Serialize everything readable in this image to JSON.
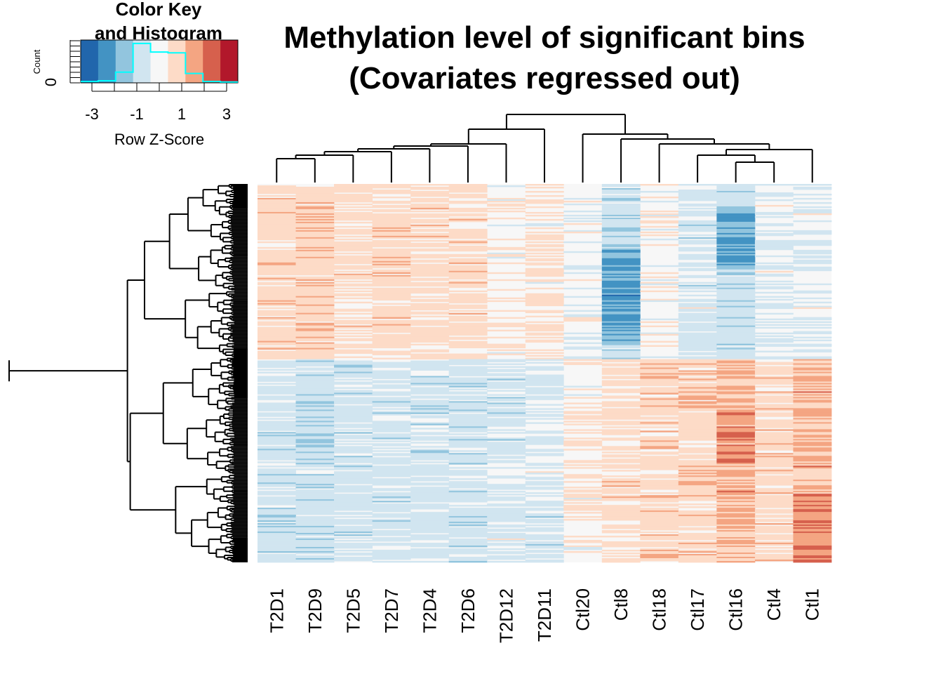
{
  "chart_data": {
    "type": "heatmap",
    "title": [
      "Methylation level of significant bins",
      "(Covariates regressed out)"
    ],
    "columns": [
      "T2D1",
      "T2D9",
      "T2D5",
      "T2D7",
      "T2D4",
      "T2D6",
      "T2D12",
      "T2D11",
      "Ctl20",
      "Ctl8",
      "Ctl18",
      "Ctl17",
      "Ctl16",
      "Ctl4",
      "Ctl1"
    ],
    "row_dendrogram": true,
    "column_dendrogram": true,
    "color_key": {
      "title": [
        "Color Key",
        "and Histogram"
      ],
      "xlabel": "Row Z-Score",
      "ylabel": "Count",
      "y_tick": "0",
      "ticks": [
        "-3",
        "-1",
        "1",
        "3"
      ],
      "range": [
        -3.5,
        3.5
      ],
      "colors": [
        "#2166ac",
        "#4393c3",
        "#92c5de",
        "#d1e5f0",
        "#f7f7f7",
        "#fddbc7",
        "#f4a582",
        "#d6604d",
        "#b2182b"
      ],
      "histogram_color": "#00ffff"
    },
    "cluster_pattern": {
      "rows_top_half": "T2D samples higher (red), controls lower (blue)",
      "rows_bottom_half": "T2D samples lower (blue), controls higher (red)"
    }
  }
}
